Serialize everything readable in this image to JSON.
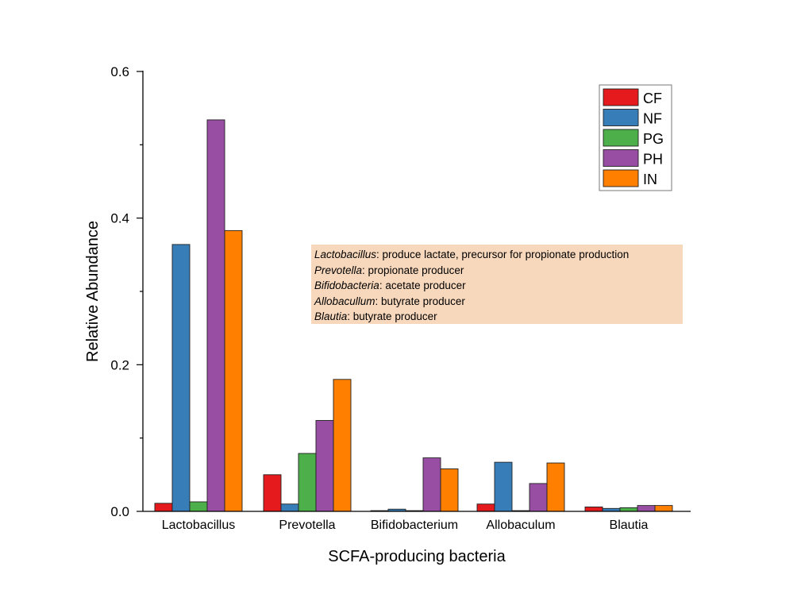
{
  "chart_data": {
    "type": "bar",
    "title": "",
    "xlabel": "SCFA-producing bacteria",
    "ylabel": "Relative Abundance",
    "ylim": [
      0,
      0.6
    ],
    "yticks": [
      "0.0",
      "0.2",
      "0.4",
      "0.6"
    ],
    "ytick_values": [
      0,
      0.2,
      0.4,
      0.6
    ],
    "yminor_ticks": [
      0.1,
      0.3,
      0.5
    ],
    "grid": false,
    "legend_position": "top-right",
    "categories": [
      "Lactobacillus",
      "Prevotella",
      "Bifidobacterium",
      "Allobaculum",
      "Blautia"
    ],
    "series": [
      {
        "name": "CF",
        "color": "#e41a1c",
        "values": [
          0.011,
          0.05,
          0.001,
          0.01,
          0.006
        ]
      },
      {
        "name": "NF",
        "color": "#377eb8",
        "values": [
          0.364,
          0.01,
          0.003,
          0.067,
          0.004
        ]
      },
      {
        "name": "PG",
        "color": "#4daf4a",
        "values": [
          0.013,
          0.079,
          0.001,
          0.001,
          0.005
        ]
      },
      {
        "name": "PH",
        "color": "#984ea3",
        "values": [
          0.534,
          0.124,
          0.073,
          0.038,
          0.008
        ]
      },
      {
        "name": "IN",
        "color": "#ff7f00",
        "values": [
          0.383,
          0.18,
          0.058,
          0.066,
          0.008
        ]
      }
    ],
    "annotation": {
      "background": "#f8d8bc",
      "lines": [
        {
          "taxon": "Lactobacillus",
          "text": ": produce lactate, precursor for propionate production"
        },
        {
          "taxon": "Prevotella",
          "text": ": propionate producer"
        },
        {
          "taxon": "Bifidobacteria",
          "text": ": acetate producer"
        },
        {
          "taxon": "Allobacullum",
          "text": ": butyrate producer"
        },
        {
          "taxon": "Blautia",
          "text": ": butyrate producer"
        }
      ]
    }
  }
}
